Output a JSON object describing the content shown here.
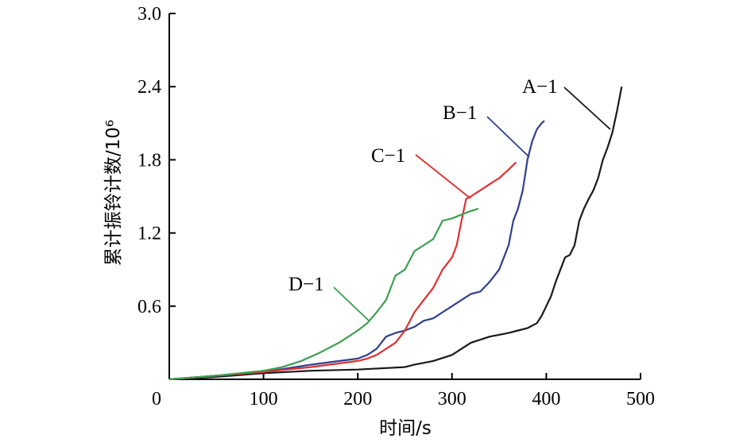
{
  "chart_data": {
    "type": "line",
    "xlabel": "时间/s",
    "ylabel": "累计振铃计数/10⁶",
    "xlim": [
      0,
      500
    ],
    "ylim": [
      0,
      3.0
    ],
    "x_ticks": [
      "0",
      "100",
      "200",
      "300",
      "400",
      "500"
    ],
    "y_ticks": [
      "0.6",
      "1.2",
      "1.8",
      "2.4",
      "3.0"
    ],
    "grid": false,
    "series": [
      {
        "name": "A−1",
        "color": "#1a1a1a",
        "x": [
          0,
          50,
          100,
          150,
          200,
          250,
          260,
          280,
          300,
          310,
          320,
          340,
          360,
          370,
          380,
          390,
          395,
          400,
          405,
          410,
          415,
          420,
          425,
          430,
          435,
          440,
          445,
          450,
          455,
          460,
          465,
          470,
          475,
          480
        ],
        "y": [
          0.0,
          0.02,
          0.05,
          0.07,
          0.08,
          0.1,
          0.12,
          0.15,
          0.2,
          0.25,
          0.3,
          0.35,
          0.38,
          0.4,
          0.42,
          0.46,
          0.52,
          0.6,
          0.68,
          0.8,
          0.9,
          1.0,
          1.02,
          1.1,
          1.3,
          1.4,
          1.48,
          1.55,
          1.65,
          1.8,
          1.9,
          2.02,
          2.2,
          2.4
        ]
      },
      {
        "name": "B−1",
        "color": "#2f3f8f",
        "x": [
          0,
          50,
          100,
          150,
          200,
          210,
          220,
          230,
          240,
          250,
          260,
          270,
          280,
          290,
          300,
          310,
          320,
          330,
          340,
          350,
          360,
          365,
          370,
          375,
          380,
          385,
          390,
          395,
          398
        ],
        "y": [
          0.0,
          0.03,
          0.06,
          0.12,
          0.17,
          0.2,
          0.25,
          0.35,
          0.38,
          0.4,
          0.43,
          0.48,
          0.5,
          0.55,
          0.6,
          0.65,
          0.7,
          0.72,
          0.8,
          0.9,
          1.1,
          1.3,
          1.4,
          1.55,
          1.8,
          1.95,
          2.05,
          2.1,
          2.12
        ]
      },
      {
        "name": "C−1",
        "color": "#e03030",
        "x": [
          0,
          50,
          100,
          150,
          200,
          210,
          220,
          230,
          240,
          250,
          260,
          270,
          280,
          290,
          300,
          305,
          310,
          315,
          320,
          330,
          340,
          350,
          360,
          368
        ],
        "y": [
          0.0,
          0.03,
          0.06,
          0.1,
          0.15,
          0.17,
          0.2,
          0.25,
          0.3,
          0.4,
          0.55,
          0.65,
          0.75,
          0.9,
          1.0,
          1.1,
          1.3,
          1.48,
          1.5,
          1.55,
          1.6,
          1.65,
          1.72,
          1.78
        ]
      },
      {
        "name": "D−1",
        "color": "#3aa050",
        "x": [
          0,
          50,
          100,
          120,
          140,
          160,
          180,
          200,
          210,
          220,
          230,
          240,
          250,
          260,
          270,
          280,
          290,
          300,
          310,
          320,
          328
        ],
        "y": [
          0.0,
          0.03,
          0.07,
          0.1,
          0.15,
          0.22,
          0.3,
          0.4,
          0.46,
          0.55,
          0.65,
          0.85,
          0.9,
          1.05,
          1.1,
          1.15,
          1.3,
          1.32,
          1.35,
          1.38,
          1.4
        ]
      }
    ],
    "annotations": [
      {
        "text": "A−1",
        "series": "A−1"
      },
      {
        "text": "B−1",
        "series": "B−1"
      },
      {
        "text": "C−1",
        "series": "C−1"
      },
      {
        "text": "D−1",
        "series": "D−1"
      }
    ]
  }
}
